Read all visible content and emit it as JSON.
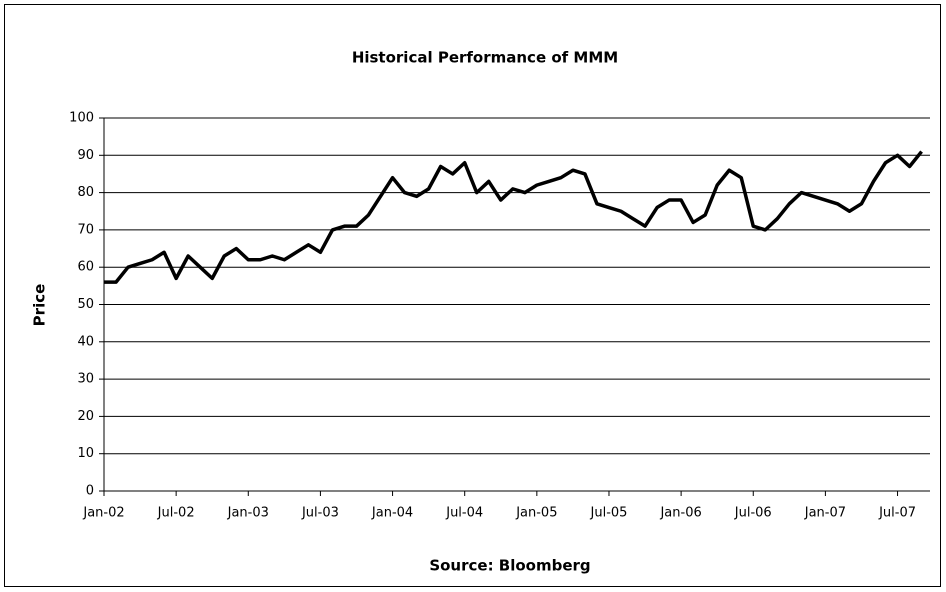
{
  "chart_data": {
    "type": "line",
    "title": "Historical Performance of MMM",
    "x_label": "Source: Bloomberg",
    "y_label": "Price",
    "categories": [
      "Jan-02",
      null,
      null,
      null,
      null,
      null,
      "Jul-02",
      null,
      null,
      null,
      null,
      null,
      "Jan-03",
      null,
      null,
      null,
      null,
      null,
      "Jul-03",
      null,
      null,
      null,
      null,
      null,
      "Jan-04",
      null,
      null,
      null,
      null,
      null,
      "Jul-04",
      null,
      null,
      null,
      null,
      null,
      "Jan-05",
      null,
      null,
      null,
      null,
      null,
      "Jul-05",
      null,
      null,
      null,
      null,
      null,
      "Jan-06",
      null,
      null,
      null,
      null,
      null,
      "Jul-06",
      null,
      null,
      null,
      null,
      null,
      "Jan-07",
      null,
      null,
      null,
      null,
      null,
      "Jul-07",
      null,
      null
    ],
    "series": [
      {
        "name": "MMM",
        "color": "#000000",
        "values": [
          56,
          56,
          60,
          61,
          62,
          64,
          57,
          63,
          60,
          57,
          63,
          65,
          62,
          62,
          63,
          62,
          64,
          66,
          64,
          70,
          71,
          71,
          74,
          79,
          84,
          80,
          79,
          81,
          87,
          85,
          88,
          80,
          83,
          78,
          81,
          80,
          82,
          83,
          84,
          86,
          85,
          77,
          76,
          75,
          73,
          71,
          76,
          78,
          78,
          72,
          74,
          82,
          86,
          84,
          71,
          70,
          73,
          77,
          80,
          79,
          78,
          77,
          75,
          77,
          83,
          88,
          90,
          87,
          91
        ]
      }
    ],
    "ylim": [
      0,
      100
    ],
    "yticks": [
      0,
      10,
      20,
      30,
      40,
      50,
      60,
      70,
      80,
      90,
      100
    ],
    "grid": true
  }
}
